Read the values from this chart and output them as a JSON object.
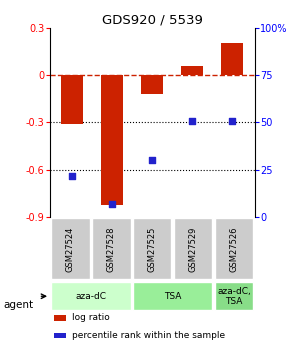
{
  "title": "GDS920 / 5539",
  "samples": [
    "GSM27524",
    "GSM27528",
    "GSM27525",
    "GSM27529",
    "GSM27526"
  ],
  "log_ratio": [
    -0.31,
    -0.82,
    -0.12,
    0.06,
    0.2
  ],
  "percentile_rank": [
    22,
    7,
    30,
    51,
    51
  ],
  "agent_groups": [
    {
      "label": "aza-dC",
      "span": [
        0,
        2
      ],
      "color": "#ccffcc"
    },
    {
      "label": "TSA",
      "span": [
        2,
        4
      ],
      "color": "#99ee99"
    },
    {
      "label": "aza-dC,\nTSA",
      "span": [
        4,
        5
      ],
      "color": "#88dd88"
    }
  ],
  "ylim_left": [
    -0.9,
    0.3
  ],
  "ylim_right": [
    0,
    100
  ],
  "yticks_left": [
    -0.9,
    -0.6,
    -0.3,
    0.0,
    0.3
  ],
  "ytick_labels_left": [
    "-0.9",
    "-0.6",
    "-0.3",
    "0",
    "0.3"
  ],
  "yticks_right": [
    0,
    25,
    50,
    75,
    100
  ],
  "ytick_labels_right": [
    "0",
    "25",
    "50",
    "75",
    "100%"
  ],
  "bar_color": "#cc2200",
  "dot_color": "#2222cc",
  "dotted_lines": [
    -0.3,
    -0.6
  ],
  "bar_width": 0.55,
  "dot_size": 25,
  "agent_label": "agent",
  "legend_items": [
    {
      "color": "#cc2200",
      "label": "log ratio"
    },
    {
      "color": "#2222cc",
      "label": "percentile rank within the sample"
    }
  ]
}
